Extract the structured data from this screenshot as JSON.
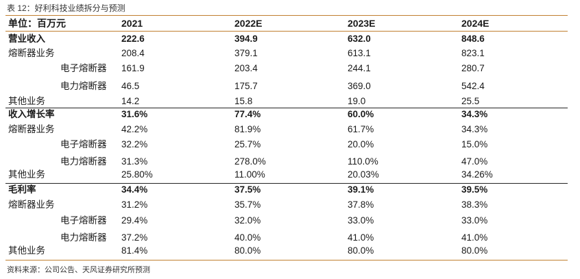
{
  "caption": "表 12：好利科技业绩拆分与预测",
  "header": [
    "单位：百万元",
    "2021",
    "2022E",
    "2023E",
    "2024E"
  ],
  "rows": [
    {
      "label": "营业收入",
      "values": [
        "222.6",
        "394.9",
        "632.0",
        "848.6"
      ],
      "bold": true,
      "indent": false
    },
    {
      "label": "熔断器业务",
      "values": [
        "208.4",
        "379.1",
        "613.1",
        "823.1"
      ],
      "bold": false,
      "indent": false
    },
    {
      "label": "电子熔断器",
      "values": [
        "161.9",
        "203.4",
        "244.1",
        "280.7"
      ],
      "bold": false,
      "indent": true
    },
    {
      "label": "电力熔断器",
      "values": [
        "46.5",
        "175.7",
        "369.0",
        "542.4"
      ],
      "bold": false,
      "indent": true
    },
    {
      "label": "其他业务",
      "values": [
        "14.2",
        "15.8",
        "19.0",
        "25.5"
      ],
      "bold": false,
      "indent": false
    },
    {
      "label": "收入增长率",
      "values": [
        "31.6%",
        "77.4%",
        "60.0%",
        "34.3%"
      ],
      "bold": true,
      "indent": false
    },
    {
      "label": "熔断器业务",
      "values": [
        "42.2%",
        "81.9%",
        "61.7%",
        "34.3%"
      ],
      "bold": false,
      "indent": false
    },
    {
      "label": "电子熔断器",
      "values": [
        "32.2%",
        "25.7%",
        "20.0%",
        "15.0%"
      ],
      "bold": false,
      "indent": true
    },
    {
      "label": "电力熔断器",
      "values": [
        "31.3%",
        "278.0%",
        "110.0%",
        "47.0%"
      ],
      "bold": false,
      "indent": true
    },
    {
      "label": "其他业务",
      "values": [
        "25.80%",
        "11.00%",
        "20.03%",
        "34.26%"
      ],
      "bold": false,
      "indent": false
    },
    {
      "label": "毛利率",
      "values": [
        "34.4%",
        "37.5%",
        "39.1%",
        "39.5%"
      ],
      "bold": true,
      "indent": false
    },
    {
      "label": "熔断器业务",
      "values": [
        "31.2%",
        "35.7%",
        "37.8%",
        "38.3%"
      ],
      "bold": false,
      "indent": false
    },
    {
      "label": "电子熔断器",
      "values": [
        "29.4%",
        "32.0%",
        "33.0%",
        "33.0%"
      ],
      "bold": false,
      "indent": true
    },
    {
      "label": "电力熔断器",
      "values": [
        "37.2%",
        "40.0%",
        "41.0%",
        "41.0%"
      ],
      "bold": false,
      "indent": true
    },
    {
      "label": "其他业务",
      "values": [
        "81.4%",
        "80.0%",
        "80.0%",
        "80.0%"
      ],
      "bold": false,
      "indent": false
    }
  ],
  "footnote": "资料来源：公司公告、天风证券研究所预测",
  "colors": {
    "accent_rule": "#c07e2e",
    "section_rule": "#222222"
  }
}
